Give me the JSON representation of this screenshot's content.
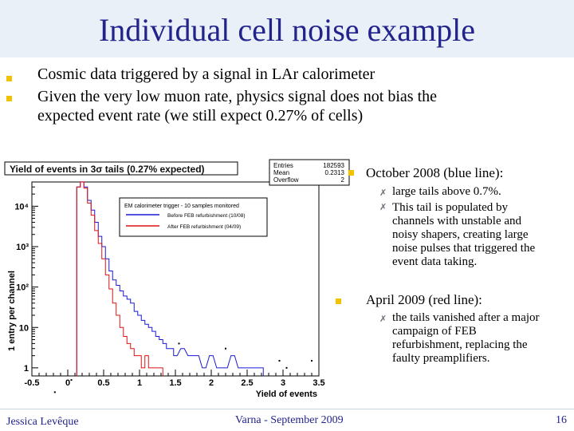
{
  "slide": {
    "title": "Individual cell noise example",
    "bullets": [
      "Cosmic data triggered by a signal in LAr calorimeter",
      "Given the very low muon rate, physics signal does not bias the",
      "expected event rate (we still expect 0.27% of cells)"
    ],
    "right": {
      "oct_title": "October 2008 (blue line):",
      "oct_sub1": "large tails above 0.7%.",
      "oct_sub2": [
        "This tail is populated by",
        "channels with unstable and",
        "noisy shapers, creating large",
        "noise pulses that triggered the",
        "event data taking."
      ],
      "apr_title": "April 2009 (red line):",
      "apr_sub1": [
        "the tails vanished after a major",
        "campaign of FEB",
        "refurbishment, replacing the",
        "faulty preamplifiers."
      ]
    },
    "footer": {
      "author": "Jessica Levêque",
      "event": "Varna -  September 2009",
      "page": "16"
    },
    "colors": {
      "title": "#23238c",
      "bullet": "#f2c200",
      "blue": "#1a1ad6",
      "red": "#e01010"
    }
  },
  "chart_data": {
    "type": "line",
    "title": "Yield of events in 3σ tails (0.27% expected)",
    "xlabel": "Yield of events",
    "ylabel": "1 entry per channel",
    "xlim": [
      -0.5,
      3.5
    ],
    "ylim_log10": [
      -0.2,
      4.6
    ],
    "log_y": true,
    "x_ticks": [
      "-0.5",
      "0",
      "0.5",
      "1",
      "1.5",
      "2",
      "2.5",
      "3",
      "3.5"
    ],
    "y_ticks": [
      "1",
      "10",
      "10²",
      "10³",
      "10⁴"
    ],
    "stats": {
      "Entries": "182593",
      "Mean": "0.2313",
      "Overflow": "2"
    },
    "legend": {
      "header": "EM calorimeter trigger - 10 samples monitored",
      "entries": [
        "Before FEB refurbishment (10/08)",
        "After  FEB refurbishment (04/09)"
      ]
    },
    "series": [
      {
        "name": "Before FEB refurbishment (10/08)",
        "color": "#1a1ad6",
        "x": [
          0.15,
          0.2,
          0.25,
          0.3,
          0.35,
          0.4,
          0.45,
          0.5,
          0.55,
          0.6,
          0.65,
          0.7,
          0.75,
          0.8,
          0.85,
          0.9,
          0.95,
          1.0,
          1.05,
          1.1,
          1.15,
          1.2,
          1.25,
          1.3,
          1.35,
          1.4,
          1.45,
          1.5,
          1.6,
          1.7,
          1.8,
          1.9,
          2.0,
          2.1,
          2.2,
          2.3,
          2.4,
          2.5,
          2.6,
          2.7
        ],
        "y": [
          30000,
          40000,
          30000,
          14000,
          8000,
          4000,
          1800,
          1000,
          500,
          250,
          150,
          110,
          80,
          60,
          50,
          40,
          25,
          20,
          15,
          12,
          10,
          8,
          6,
          5,
          4,
          3,
          3,
          2,
          3,
          2,
          2,
          1,
          2,
          1,
          1,
          2,
          1,
          1,
          1,
          1
        ]
      },
      {
        "name": "After  FEB refurbishment (04/09)",
        "color": "#e01010",
        "x": [
          0.15,
          0.2,
          0.25,
          0.3,
          0.35,
          0.4,
          0.45,
          0.5,
          0.55,
          0.6,
          0.65,
          0.7,
          0.75,
          0.8,
          0.85,
          0.9,
          0.95,
          1.0,
          1.05,
          1.1,
          1.15,
          1.2,
          1.25,
          1.3
        ],
        "y": [
          30000,
          40000,
          28000,
          12000,
          6000,
          2500,
          1200,
          500,
          200,
          90,
          40,
          20,
          10,
          6,
          4,
          3,
          2,
          2,
          1,
          2,
          1,
          1,
          1,
          1
        ]
      }
    ]
  }
}
